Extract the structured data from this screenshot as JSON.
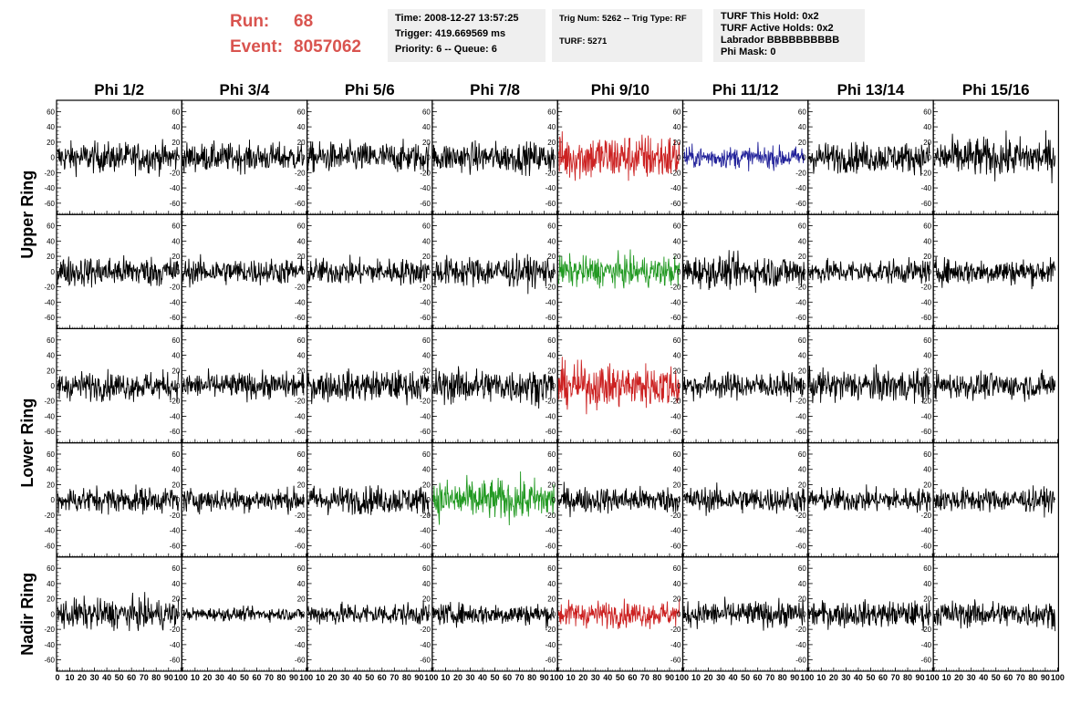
{
  "header": {
    "run_label": "Run:",
    "run_value": "68",
    "event_label": "Event:",
    "event_value": "8057062",
    "time_line": "Time: 2008-12-27 13:57:25",
    "trigger_line": "Trigger: 419.669569 ms",
    "priority_line": "Priority: 6 -- Queue: 6",
    "trig_num_line": "Trig Num: 5262 -- Trig Type: RF",
    "turf_line": "TURF: 5271",
    "turf_this_hold": "TURF This Hold: 0x2",
    "turf_active_holds": "TURF Active Holds: 0x2",
    "labrador": "Labrador BBBBBBBBBB",
    "phi_mask": "Phi Mask: 0"
  },
  "colors": {
    "run_text": "#d9544f",
    "trace_default": "#000000",
    "trace_red": "#cc2222",
    "trace_green": "#229922",
    "trace_blue": "#22229a"
  },
  "chart_data": {
    "type": "line",
    "phi_columns": [
      "Phi 1/2",
      "Phi 3/4",
      "Phi 5/6",
      "Phi 7/8",
      "Phi 9/10",
      "Phi 11/12",
      "Phi 13/14",
      "Phi 15/16"
    ],
    "ring_labels": [
      "Upper Ring",
      "Lower Ring",
      "Nadir Ring"
    ],
    "rows": 5,
    "ring_row_spans": [
      [
        0,
        1
      ],
      [
        2,
        3
      ],
      [
        4,
        4
      ]
    ],
    "x_ticks": [
      0,
      10,
      20,
      30,
      40,
      50,
      60,
      70,
      80,
      90,
      100
    ],
    "y_ticks": [
      -60,
      -40,
      -20,
      0,
      20,
      40,
      60
    ],
    "xlim": [
      0,
      100
    ],
    "ylim": [
      -70,
      70
    ],
    "samples": 260,
    "trace_x_range": [
      0,
      98
    ],
    "highlighted": [
      {
        "row": 0,
        "col": 4,
        "color": "red"
      },
      {
        "row": 0,
        "col": 5,
        "color": "blue"
      },
      {
        "row": 1,
        "col": 4,
        "color": "green"
      },
      {
        "row": 2,
        "col": 4,
        "color": "red"
      },
      {
        "row": 3,
        "col": 3,
        "color": "green"
      },
      {
        "row": 4,
        "col": 4,
        "color": "red"
      }
    ],
    "trace_amplitudes": [
      [
        14,
        13,
        14,
        14,
        22,
        10,
        14,
        18
      ],
      [
        14,
        12,
        12,
        14,
        14,
        15,
        11,
        12
      ],
      [
        13,
        12,
        14,
        16,
        20,
        12,
        15,
        12
      ],
      [
        12,
        11,
        13,
        19,
        12,
        12,
        11,
        11
      ],
      [
        14,
        6,
        10,
        10,
        12,
        12,
        12,
        12
      ]
    ]
  }
}
